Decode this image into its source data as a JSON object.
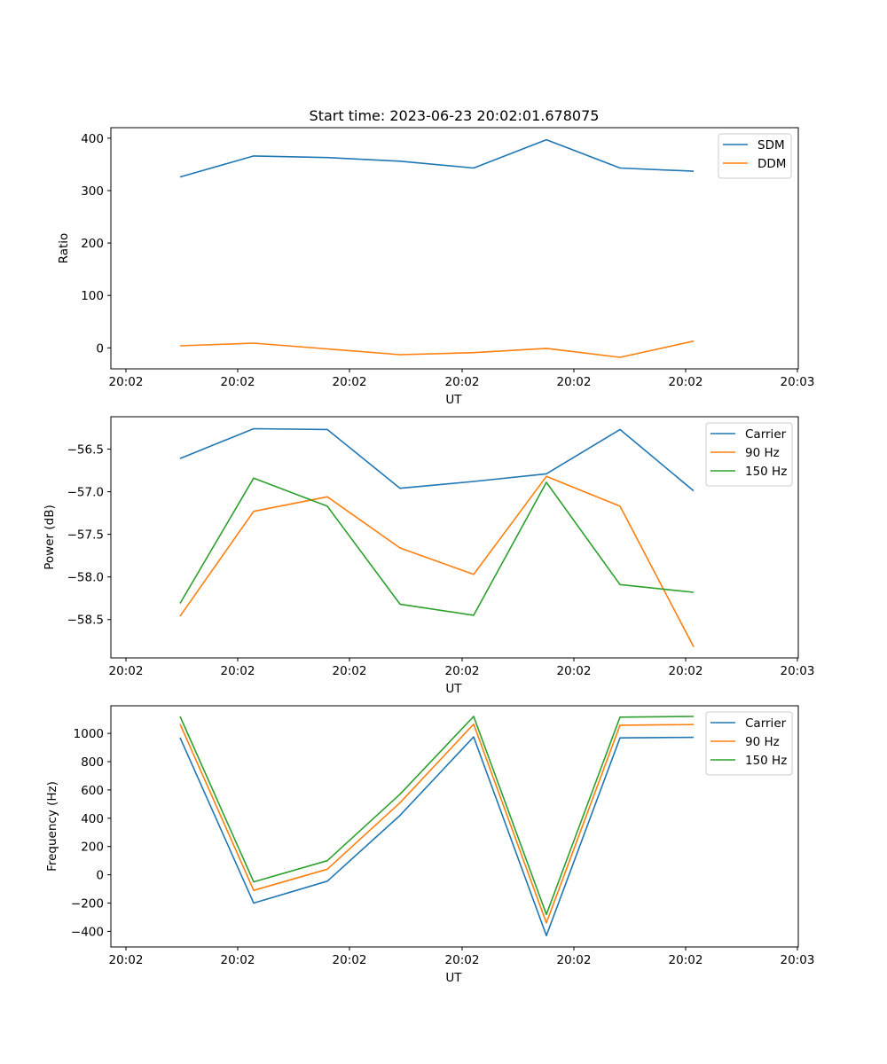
{
  "title": "Start time: 2023-06-23 20:02:01.678075",
  "chart_data": [
    {
      "type": "line",
      "xlabel": "UT",
      "ylabel": "Ratio",
      "xticks": [
        "20:02",
        "20:02",
        "20:02",
        "20:02",
        "20:02",
        "20:02",
        "20:03"
      ],
      "yticks": [
        "0",
        "100",
        "200",
        "300",
        "400"
      ],
      "ylim": [
        -40,
        420
      ],
      "legend_position": "upper right",
      "series": [
        {
          "name": "SDM",
          "color": "#1f77b4",
          "values": [
            326,
            366,
            363,
            356,
            343,
            397,
            343,
            337
          ]
        },
        {
          "name": "DDM",
          "color": "#ff7f0e",
          "values": [
            4,
            9,
            -2,
            -13,
            -9,
            -1,
            -18,
            13
          ]
        }
      ]
    },
    {
      "type": "line",
      "xlabel": "UT",
      "ylabel": "Power (dB)",
      "xticks": [
        "20:02",
        "20:02",
        "20:02",
        "20:02",
        "20:02",
        "20:02",
        "20:03"
      ],
      "yticks": [
        "−58.5",
        "−58.0",
        "−57.5",
        "−57.0",
        "−56.5"
      ],
      "ylim": [
        -58.95,
        -56.12
      ],
      "legend_position": "upper right",
      "series": [
        {
          "name": "Carrier",
          "color": "#1f77b4",
          "values": [
            -56.61,
            -56.26,
            -56.27,
            -56.96,
            -56.88,
            -56.79,
            -56.27,
            -56.99
          ]
        },
        {
          "name": "90 Hz",
          "color": "#ff7f0e",
          "values": [
            -58.46,
            -57.23,
            -57.06,
            -57.66,
            -57.97,
            -56.82,
            -57.17,
            -58.82
          ]
        },
        {
          "name": "150 Hz",
          "color": "#2ca02c",
          "values": [
            -58.31,
            -56.84,
            -57.17,
            -58.32,
            -58.45,
            -56.89,
            -58.09,
            -58.18
          ]
        }
      ]
    },
    {
      "type": "line",
      "xlabel": "UT",
      "ylabel": "Frequency (Hz)",
      "xticks": [
        "20:02",
        "20:02",
        "20:02",
        "20:02",
        "20:02",
        "20:02",
        "20:03"
      ],
      "yticks": [
        "−400",
        "−200",
        "0",
        "200",
        "400",
        "600",
        "800",
        "1000"
      ],
      "ylim": [
        -510,
        1195
      ],
      "legend_position": "upper right",
      "series": [
        {
          "name": "Carrier",
          "color": "#1f77b4",
          "values": [
            970,
            -200,
            -45,
            420,
            975,
            -430,
            968,
            972
          ]
        },
        {
          "name": "90 Hz",
          "color": "#ff7f0e",
          "values": [
            1065,
            -110,
            40,
            510,
            1065,
            -340,
            1058,
            1062
          ]
        },
        {
          "name": "150 Hz",
          "color": "#2ca02c",
          "values": [
            1120,
            -50,
            100,
            570,
            1120,
            -280,
            1115,
            1120
          ]
        }
      ]
    }
  ]
}
